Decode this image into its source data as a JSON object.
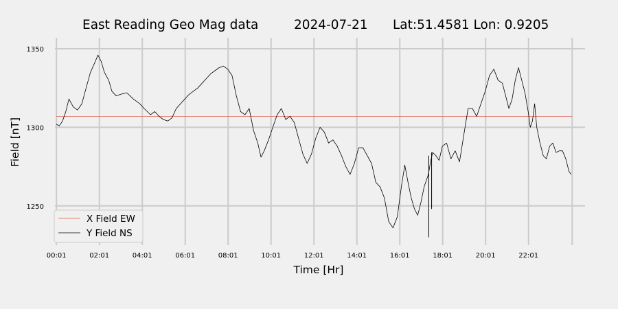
{
  "chart_data": {
    "type": "line",
    "title_parts": [
      "East Reading Geo Mag data",
      "2024-07-21",
      "Lat:51.4581  Lon: 0.9205"
    ],
    "xlabel": "Time  [Hr]",
    "ylabel": "Field  [nT]",
    "x_unit": "hours",
    "xlim": [
      -0.95,
      24.65
    ],
    "ylim": [
      1225,
      1357
    ],
    "x_ticks": [
      {
        "value": 0.0167,
        "label": "00:01"
      },
      {
        "value": 2.0167,
        "label": "02:01"
      },
      {
        "value": 4.0167,
        "label": "04:01"
      },
      {
        "value": 6.0167,
        "label": "06:01"
      },
      {
        "value": 8.0167,
        "label": "08:01"
      },
      {
        "value": 10.0167,
        "label": "10:01"
      },
      {
        "value": 12.0167,
        "label": "12:01"
      },
      {
        "value": 14.0167,
        "label": "14:01"
      },
      {
        "value": 16.0167,
        "label": "16:01"
      },
      {
        "value": 18.0167,
        "label": "18:01"
      },
      {
        "value": 20.0167,
        "label": "20:01"
      },
      {
        "value": 22.0167,
        "label": "22:01"
      }
    ],
    "extra_x_gridlines": [
      24.05
    ],
    "y_ticks": [
      1250,
      1300,
      1350
    ],
    "grid": true,
    "legend_position": "bottom-left",
    "colors": {
      "background": "#f0f0f0",
      "grid": "#cbcbcb",
      "x_series": "#e05a4a",
      "y_series": "#000000"
    },
    "series": [
      {
        "name": "X Field EW",
        "color": "#e05a4a",
        "x": [
          0.0,
          24.05
        ],
        "y": [
          1307,
          1307
        ]
      },
      {
        "name": "Y Field NS",
        "color": "#000000",
        "x": [
          0.0,
          0.15,
          0.3,
          0.45,
          0.6,
          0.8,
          1.0,
          1.2,
          1.4,
          1.6,
          1.8,
          1.95,
          2.1,
          2.25,
          2.45,
          2.6,
          2.8,
          3.0,
          3.3,
          3.6,
          3.9,
          4.1,
          4.25,
          4.4,
          4.6,
          4.8,
          5.0,
          5.2,
          5.4,
          5.6,
          5.8,
          6.0,
          6.2,
          6.4,
          6.6,
          6.8,
          7.0,
          7.2,
          7.4,
          7.6,
          7.8,
          8.0,
          8.2,
          8.4,
          8.6,
          8.8,
          9.0,
          9.2,
          9.4,
          9.55,
          9.7,
          9.9,
          10.1,
          10.3,
          10.5,
          10.7,
          10.9,
          11.1,
          11.3,
          11.5,
          11.7,
          11.9,
          12.1,
          12.3,
          12.5,
          12.7,
          12.9,
          13.1,
          13.3,
          13.5,
          13.7,
          13.9,
          14.1,
          14.3,
          14.5,
          14.7,
          14.9,
          15.1,
          15.3,
          15.5,
          15.7,
          15.9,
          16.1,
          16.25,
          16.4,
          16.55,
          16.7,
          16.85,
          17.0,
          17.15,
          17.3,
          17.35,
          17.45,
          17.55,
          17.7,
          17.85,
          18.0,
          18.2,
          18.4,
          18.6,
          18.8,
          19.0,
          19.2,
          19.4,
          19.6,
          19.8,
          20.0,
          20.2,
          20.4,
          20.6,
          20.8,
          20.95,
          21.1,
          21.25,
          21.4,
          21.55,
          21.7,
          21.85,
          22.0,
          22.1,
          22.2,
          22.3,
          22.4,
          22.55,
          22.7,
          22.85,
          23.0,
          23.15,
          23.3,
          23.45,
          23.6,
          23.75,
          23.9,
          24.0
        ],
        "y": [
          1302,
          1301,
          1304,
          1310,
          1318,
          1313,
          1311,
          1315,
          1325,
          1335,
          1341,
          1346,
          1342,
          1335,
          1330,
          1323,
          1320,
          1321,
          1322,
          1318,
          1315,
          1312,
          1310,
          1308,
          1310,
          1307,
          1305,
          1304,
          1306,
          1312,
          1315,
          1318,
          1321,
          1323,
          1325,
          1328,
          1331,
          1334,
          1336,
          1338,
          1339,
          1337,
          1333,
          1320,
          1310,
          1308,
          1312,
          1298,
          1290,
          1281,
          1285,
          1292,
          1300,
          1308,
          1312,
          1305,
          1307,
          1303,
          1293,
          1283,
          1277,
          1283,
          1293,
          1300,
          1297,
          1290,
          1292,
          1288,
          1282,
          1275,
          1270,
          1277,
          1287,
          1287,
          1282,
          1277,
          1265,
          1262,
          1255,
          1240,
          1236,
          1243,
          1263,
          1276,
          1265,
          1255,
          1248,
          1244,
          1252,
          1262,
          1268,
          1270,
          1278,
          1284,
          1282,
          1279,
          1288,
          1290,
          1280,
          1285,
          1278,
          1295,
          1312,
          1312,
          1307,
          1315,
          1323,
          1333,
          1337,
          1330,
          1328,
          1320,
          1312,
          1318,
          1330,
          1338,
          1330,
          1322,
          1310,
          1300,
          1304,
          1315,
          1300,
          1290,
          1282,
          1280,
          1288,
          1290,
          1284,
          1285,
          1285,
          1280,
          1272,
          1270
        ]
      }
    ],
    "spikes": [
      {
        "x": 17.37,
        "from": 1230,
        "to": 1282
      },
      {
        "x": 17.5,
        "from": 1248,
        "to": 1284
      }
    ]
  },
  "legend": {
    "x_label": "X Field EW",
    "y_label": "Y Field NS"
  }
}
